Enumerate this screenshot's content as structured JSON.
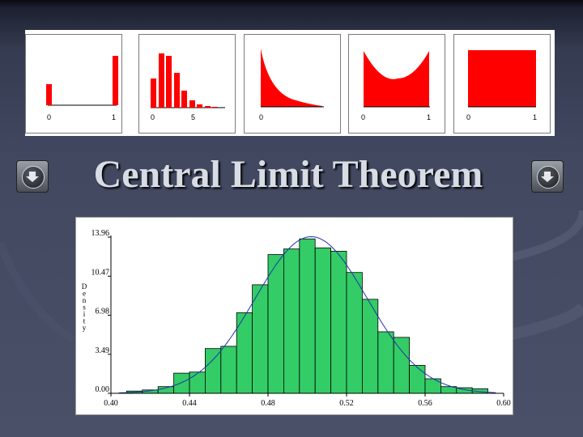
{
  "title": "Central Limit Theorem",
  "nav": {
    "left_icon": "down-arrow-icon",
    "right_icon": "down-arrow-icon"
  },
  "distributions": [
    {
      "shape": "two-point",
      "ticks": [
        "0",
        "1"
      ]
    },
    {
      "shape": "discrete-skewed",
      "ticks": [
        "0",
        "5"
      ]
    },
    {
      "shape": "exponential",
      "ticks": [
        "0"
      ]
    },
    {
      "shape": "u-shaped",
      "ticks": [
        "0",
        "1"
      ]
    },
    {
      "shape": "uniform",
      "ticks": [
        "0",
        "1"
      ]
    }
  ],
  "colors": {
    "bar": "#33cc66",
    "curve": "#2233aa",
    "mini": "#ff0000"
  },
  "chart_data": {
    "type": "bar",
    "ylabel": "Density",
    "x_ticks": [
      "0.40",
      "0.44",
      "0.48",
      "0.52",
      "0.56",
      "0.60"
    ],
    "y_ticks": [
      "0.00",
      "3.49",
      "6.98",
      "10.47",
      "13.96"
    ],
    "xlim": [
      0.4,
      0.6
    ],
    "ylim": [
      0,
      13.96
    ],
    "bin_width": 0.008,
    "bins_start": [
      0.408,
      0.416,
      0.424,
      0.432,
      0.44,
      0.448,
      0.456,
      0.464,
      0.472,
      0.48,
      0.488,
      0.496,
      0.504,
      0.512,
      0.52,
      0.528,
      0.536,
      0.544,
      0.552,
      0.56,
      0.568,
      0.576,
      0.584
    ],
    "values": [
      0.2,
      0.3,
      0.6,
      1.8,
      1.9,
      4.0,
      4.2,
      7.2,
      9.7,
      12.4,
      12.9,
      13.8,
      13.0,
      12.7,
      10.8,
      8.4,
      5.5,
      5.0,
      2.5,
      1.3,
      0.6,
      0.5,
      0.4
    ],
    "curve": {
      "type": "normal",
      "mean": 0.502,
      "sd": 0.0285
    }
  }
}
